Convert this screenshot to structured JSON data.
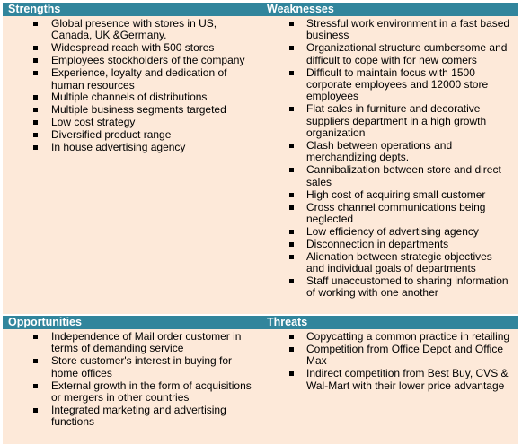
{
  "quadrants": [
    {
      "title": "Strengths",
      "items": [
        "Global presence with stores in US, Canada, UK &Germany.",
        "Widespread reach with 500 stores",
        "Employees stockholders of the company",
        "Experience, loyalty and dedication of human resources",
        "Multiple channels of distributions",
        "Multiple business segments targeted",
        "Low cost strategy",
        "Diversified product range",
        "In house advertising agency"
      ]
    },
    {
      "title": "Weaknesses",
      "items": [
        "Stressful work environment in a fast based business",
        "Organizational structure cumbersome and difficult to cope with for new comers",
        "Difficult to maintain focus with 1500 corporate employees and 12000 store employees",
        "Flat sales in furniture and decorative suppliers department in a high growth organization",
        "Clash between operations and merchandizing depts.",
        "Cannibalization between store and direct sales",
        "High cost of acquiring small customer",
        "Cross channel communications being neglected",
        "Low efficiency of advertising agency",
        "Disconnection in departments",
        "Alienation between strategic objectives and individual goals of departments",
        "Staff unaccustomed to sharing information of working with one another"
      ]
    },
    {
      "title": "Opportunities",
      "items": [
        "Independence of Mail order customer in terms of demanding service",
        "Store customer's interest in buying for home offices",
        "External growth in the form of acquisitions or mergers in other countries",
        "Integrated marketing and advertising functions"
      ]
    },
    {
      "title": "Threats",
      "items": [
        "Copycatting a common practice in retailing",
        "Competition from Office Depot and Office Max",
        "Indirect competition from Best Buy, CVS & Wal-Mart with their lower price advantage"
      ]
    }
  ]
}
